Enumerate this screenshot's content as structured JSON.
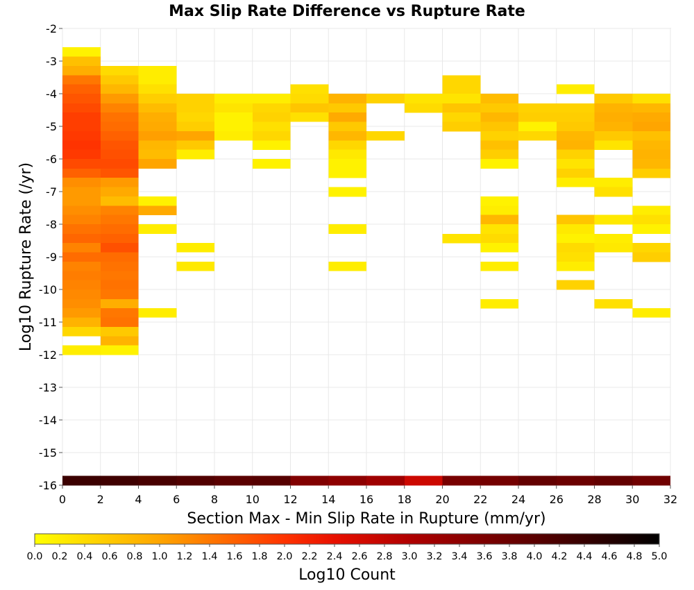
{
  "chart_data": {
    "type": "heatmap",
    "title": "Max Slip Rate Difference vs Rupture Rate",
    "xlabel": "Section Max - Min Slip Rate in Rupture (mm/yr)",
    "ylabel": "Log10 Rupture Rate (/yr)",
    "xlim": [
      0,
      32
    ],
    "ylim": [
      -16,
      -2
    ],
    "grid": true,
    "x_bin_width": 2,
    "y_bin_height": 0.286,
    "x_ticks": [
      "0",
      "2",
      "4",
      "6",
      "8",
      "10",
      "12",
      "14",
      "16",
      "18",
      "20",
      "22",
      "24",
      "26",
      "28",
      "30",
      "32"
    ],
    "y_ticks": [
      "-2",
      "-3",
      "-4",
      "-5",
      "-6",
      "-7",
      "-8",
      "-9",
      "-10",
      "-11",
      "-12",
      "-13",
      "-14",
      "-15",
      "-16"
    ],
    "colorbar": {
      "label": "Log10 Count",
      "min": 0.0,
      "max": 5.0,
      "placement": "bottom",
      "ticks": [
        "0.0",
        "0.2",
        "0.4",
        "0.6",
        "0.8",
        "1.0",
        "1.2",
        "1.4",
        "1.6",
        "1.8",
        "2.0",
        "2.2",
        "2.4",
        "2.6",
        "2.8",
        "3.0",
        "3.2",
        "3.4",
        "3.6",
        "3.8",
        "4.0",
        "4.2",
        "4.4",
        "4.6",
        "4.8",
        "5.0"
      ],
      "stops": [
        {
          "v": 0.0,
          "color": "#ffff00"
        },
        {
          "v": 1.0,
          "color": "#ffa500"
        },
        {
          "v": 2.0,
          "color": "#ff3300"
        },
        {
          "v": 2.4,
          "color": "#e81000"
        },
        {
          "v": 3.0,
          "color": "#b00000"
        },
        {
          "v": 4.0,
          "color": "#5a0000"
        },
        {
          "v": 5.0,
          "color": "#000000"
        }
      ]
    },
    "bins": [
      {
        "x": 0,
        "y": -2.86,
        "v": 0.15
      },
      {
        "x": 0,
        "y": -3.15,
        "v": 0.7
      },
      {
        "x": 0,
        "y": -3.43,
        "v": 0.9
      },
      {
        "x": 0,
        "y": -3.72,
        "v": 1.4
      },
      {
        "x": 0,
        "y": -4.0,
        "v": 1.6
      },
      {
        "x": 0,
        "y": -4.29,
        "v": 1.7
      },
      {
        "x": 0,
        "y": -4.58,
        "v": 1.8
      },
      {
        "x": 0,
        "y": -4.86,
        "v": 1.9
      },
      {
        "x": 0,
        "y": -5.15,
        "v": 1.9
      },
      {
        "x": 0,
        "y": -5.43,
        "v": 1.95
      },
      {
        "x": 0,
        "y": -5.72,
        "v": 2.0
      },
      {
        "x": 0,
        "y": -6.0,
        "v": 1.95
      },
      {
        "x": 0,
        "y": -6.29,
        "v": 1.8
      },
      {
        "x": 0,
        "y": -6.58,
        "v": 1.6
      },
      {
        "x": 0,
        "y": -6.86,
        "v": 1.2
      },
      {
        "x": 0,
        "y": -7.15,
        "v": 1.1
      },
      {
        "x": 0,
        "y": -7.43,
        "v": 1.1
      },
      {
        "x": 0,
        "y": -7.72,
        "v": 1.2
      },
      {
        "x": 0,
        "y": -8.0,
        "v": 1.3
      },
      {
        "x": 0,
        "y": -8.29,
        "v": 1.45
      },
      {
        "x": 0,
        "y": -8.58,
        "v": 1.55
      },
      {
        "x": 0,
        "y": -8.86,
        "v": 1.3
      },
      {
        "x": 0,
        "y": -9.15,
        "v": 1.5
      },
      {
        "x": 0,
        "y": -9.43,
        "v": 1.3
      },
      {
        "x": 0,
        "y": -9.72,
        "v": 1.35
      },
      {
        "x": 0,
        "y": -10.0,
        "v": 1.3
      },
      {
        "x": 0,
        "y": -10.29,
        "v": 1.25
      },
      {
        "x": 0,
        "y": -10.58,
        "v": 1.2
      },
      {
        "x": 0,
        "y": -10.86,
        "v": 1.1
      },
      {
        "x": 0,
        "y": -11.15,
        "v": 0.85
      },
      {
        "x": 0,
        "y": -11.43,
        "v": 0.45
      },
      {
        "x": 0,
        "y": -12.0,
        "v": 0.2
      },
      {
        "x": 2,
        "y": -3.43,
        "v": 0.4
      },
      {
        "x": 2,
        "y": -3.72,
        "v": 0.6
      },
      {
        "x": 2,
        "y": -4.0,
        "v": 0.8
      },
      {
        "x": 2,
        "y": -4.29,
        "v": 1.1
      },
      {
        "x": 2,
        "y": -4.58,
        "v": 1.3
      },
      {
        "x": 2,
        "y": -4.86,
        "v": 1.45
      },
      {
        "x": 2,
        "y": -5.15,
        "v": 1.5
      },
      {
        "x": 2,
        "y": -5.43,
        "v": 1.6
      },
      {
        "x": 2,
        "y": -5.72,
        "v": 1.7
      },
      {
        "x": 2,
        "y": -6.0,
        "v": 1.75
      },
      {
        "x": 2,
        "y": -6.29,
        "v": 1.8
      },
      {
        "x": 2,
        "y": -6.58,
        "v": 1.7
      },
      {
        "x": 2,
        "y": -6.86,
        "v": 1.1
      },
      {
        "x": 2,
        "y": -7.15,
        "v": 0.95
      },
      {
        "x": 2,
        "y": -7.43,
        "v": 0.75
      },
      {
        "x": 2,
        "y": -7.72,
        "v": 1.3
      },
      {
        "x": 2,
        "y": -8.0,
        "v": 1.4
      },
      {
        "x": 2,
        "y": -8.29,
        "v": 1.5
      },
      {
        "x": 2,
        "y": -8.58,
        "v": 1.6
      },
      {
        "x": 2,
        "y": -8.86,
        "v": 1.75
      },
      {
        "x": 2,
        "y": -9.15,
        "v": 1.5
      },
      {
        "x": 2,
        "y": -9.43,
        "v": 1.45
      },
      {
        "x": 2,
        "y": -9.72,
        "v": 1.4
      },
      {
        "x": 2,
        "y": -10.0,
        "v": 1.45
      },
      {
        "x": 2,
        "y": -10.29,
        "v": 1.4
      },
      {
        "x": 2,
        "y": -10.58,
        "v": 0.9
      },
      {
        "x": 2,
        "y": -10.86,
        "v": 1.4
      },
      {
        "x": 2,
        "y": -11.15,
        "v": 1.45
      },
      {
        "x": 2,
        "y": -11.43,
        "v": 0.6
      },
      {
        "x": 2,
        "y": -11.72,
        "v": 0.85
      },
      {
        "x": 2,
        "y": -12.0,
        "v": 0.15
      },
      {
        "x": 4,
        "y": -3.43,
        "v": 0.2
      },
      {
        "x": 4,
        "y": -3.72,
        "v": 0.2
      },
      {
        "x": 4,
        "y": -4.0,
        "v": 0.35
      },
      {
        "x": 4,
        "y": -4.29,
        "v": 0.55
      },
      {
        "x": 4,
        "y": -4.58,
        "v": 0.75
      },
      {
        "x": 4,
        "y": -4.86,
        "v": 0.9
      },
      {
        "x": 4,
        "y": -5.15,
        "v": 0.95
      },
      {
        "x": 4,
        "y": -5.43,
        "v": 1.05
      },
      {
        "x": 4,
        "y": -5.72,
        "v": 0.8
      },
      {
        "x": 4,
        "y": -6.0,
        "v": 0.75
      },
      {
        "x": 4,
        "y": -6.29,
        "v": 1.0
      },
      {
        "x": 4,
        "y": -7.43,
        "v": 0.15
      },
      {
        "x": 4,
        "y": -7.72,
        "v": 0.95
      },
      {
        "x": 4,
        "y": -8.29,
        "v": 0.2
      },
      {
        "x": 4,
        "y": -10.86,
        "v": 0.2
      },
      {
        "x": 6,
        "y": -4.29,
        "v": 0.5
      },
      {
        "x": 6,
        "y": -4.58,
        "v": 0.5
      },
      {
        "x": 6,
        "y": -4.86,
        "v": 0.45
      },
      {
        "x": 6,
        "y": -5.15,
        "v": 0.55
      },
      {
        "x": 6,
        "y": -5.43,
        "v": 1.0
      },
      {
        "x": 6,
        "y": -5.72,
        "v": 0.6
      },
      {
        "x": 6,
        "y": -6.0,
        "v": 0.2
      },
      {
        "x": 6,
        "y": -8.86,
        "v": 0.2
      },
      {
        "x": 6,
        "y": -9.43,
        "v": 0.25
      },
      {
        "x": 8,
        "y": -4.29,
        "v": 0.2
      },
      {
        "x": 8,
        "y": -4.58,
        "v": 0.3
      },
      {
        "x": 8,
        "y": -4.86,
        "v": 0.15
      },
      {
        "x": 8,
        "y": -5.15,
        "v": 0.15
      },
      {
        "x": 8,
        "y": -5.43,
        "v": 0.2
      },
      {
        "x": 10,
        "y": -4.29,
        "v": 0.2
      },
      {
        "x": 10,
        "y": -4.58,
        "v": 0.45
      },
      {
        "x": 10,
        "y": -4.86,
        "v": 0.5
      },
      {
        "x": 10,
        "y": -5.15,
        "v": 0.35
      },
      {
        "x": 10,
        "y": -5.43,
        "v": 0.45
      },
      {
        "x": 10,
        "y": -5.72,
        "v": 0.15
      },
      {
        "x": 10,
        "y": -6.29,
        "v": 0.15
      },
      {
        "x": 12,
        "y": -4.0,
        "v": 0.35
      },
      {
        "x": 12,
        "y": -4.29,
        "v": 0.4
      },
      {
        "x": 12,
        "y": -4.58,
        "v": 0.65
      },
      {
        "x": 12,
        "y": -4.86,
        "v": 0.35
      },
      {
        "x": 14,
        "y": -4.29,
        "v": 0.85
      },
      {
        "x": 14,
        "y": -4.58,
        "v": 0.6
      },
      {
        "x": 14,
        "y": -4.86,
        "v": 0.95
      },
      {
        "x": 14,
        "y": -5.15,
        "v": 0.6
      },
      {
        "x": 14,
        "y": -5.43,
        "v": 0.8
      },
      {
        "x": 14,
        "y": -5.72,
        "v": 0.45
      },
      {
        "x": 14,
        "y": -6.0,
        "v": 0.25
      },
      {
        "x": 14,
        "y": -6.29,
        "v": 0.15
      },
      {
        "x": 14,
        "y": -6.58,
        "v": 0.15
      },
      {
        "x": 14,
        "y": -7.15,
        "v": 0.15
      },
      {
        "x": 14,
        "y": -8.29,
        "v": 0.2
      },
      {
        "x": 14,
        "y": -9.43,
        "v": 0.2
      },
      {
        "x": 16,
        "y": -4.29,
        "v": 0.5
      },
      {
        "x": 16,
        "y": -5.43,
        "v": 0.45
      },
      {
        "x": 18,
        "y": -4.29,
        "v": 0.3
      },
      {
        "x": 18,
        "y": -4.58,
        "v": 0.4
      },
      {
        "x": 20,
        "y": -3.72,
        "v": 0.45
      },
      {
        "x": 20,
        "y": -4.0,
        "v": 0.45
      },
      {
        "x": 20,
        "y": -4.29,
        "v": 0.3
      },
      {
        "x": 20,
        "y": -4.58,
        "v": 0.65
      },
      {
        "x": 20,
        "y": -4.86,
        "v": 0.45
      },
      {
        "x": 20,
        "y": -5.15,
        "v": 0.55
      },
      {
        "x": 20,
        "y": -8.58,
        "v": 0.3
      },
      {
        "x": 22,
        "y": -4.29,
        "v": 0.75
      },
      {
        "x": 22,
        "y": -4.58,
        "v": 0.6
      },
      {
        "x": 22,
        "y": -4.86,
        "v": 0.8
      },
      {
        "x": 22,
        "y": -5.15,
        "v": 0.65
      },
      {
        "x": 22,
        "y": -5.43,
        "v": 0.5
      },
      {
        "x": 22,
        "y": -5.72,
        "v": 0.7
      },
      {
        "x": 22,
        "y": -6.0,
        "v": 0.55
      },
      {
        "x": 22,
        "y": -6.29,
        "v": 0.15
      },
      {
        "x": 22,
        "y": -7.43,
        "v": 0.15
      },
      {
        "x": 22,
        "y": -7.72,
        "v": 0.2
      },
      {
        "x": 22,
        "y": -8.0,
        "v": 0.8
      },
      {
        "x": 22,
        "y": -8.29,
        "v": 0.3
      },
      {
        "x": 22,
        "y": -8.58,
        "v": 0.4
      },
      {
        "x": 22,
        "y": -8.86,
        "v": 0.15
      },
      {
        "x": 22,
        "y": -9.43,
        "v": 0.2
      },
      {
        "x": 22,
        "y": -10.58,
        "v": 0.2
      },
      {
        "x": 24,
        "y": -4.58,
        "v": 0.5
      },
      {
        "x": 24,
        "y": -4.86,
        "v": 0.55
      },
      {
        "x": 24,
        "y": -5.15,
        "v": 0.15
      },
      {
        "x": 24,
        "y": -5.43,
        "v": 0.45
      },
      {
        "x": 26,
        "y": -4.0,
        "v": 0.2
      },
      {
        "x": 26,
        "y": -4.58,
        "v": 0.5
      },
      {
        "x": 26,
        "y": -4.86,
        "v": 0.55
      },
      {
        "x": 26,
        "y": -5.15,
        "v": 0.6
      },
      {
        "x": 26,
        "y": -5.43,
        "v": 0.8
      },
      {
        "x": 26,
        "y": -5.72,
        "v": 0.85
      },
      {
        "x": 26,
        "y": -6.0,
        "v": 0.5
      },
      {
        "x": 26,
        "y": -6.29,
        "v": 0.3
      },
      {
        "x": 26,
        "y": -6.58,
        "v": 0.5
      },
      {
        "x": 26,
        "y": -6.86,
        "v": 0.2
      },
      {
        "x": 26,
        "y": -8.0,
        "v": 0.65
      },
      {
        "x": 26,
        "y": -8.29,
        "v": 0.25
      },
      {
        "x": 26,
        "y": -8.58,
        "v": 0.15
      },
      {
        "x": 26,
        "y": -8.86,
        "v": 0.4
      },
      {
        "x": 26,
        "y": -9.15,
        "v": 0.35
      },
      {
        "x": 26,
        "y": -9.43,
        "v": 0.2
      },
      {
        "x": 26,
        "y": -10.0,
        "v": 0.5
      },
      {
        "x": 28,
        "y": -4.29,
        "v": 0.6
      },
      {
        "x": 28,
        "y": -4.58,
        "v": 0.85
      },
      {
        "x": 28,
        "y": -4.86,
        "v": 0.9
      },
      {
        "x": 28,
        "y": -5.15,
        "v": 0.85
      },
      {
        "x": 28,
        "y": -5.43,
        "v": 0.6
      },
      {
        "x": 28,
        "y": -5.72,
        "v": 0.3
      },
      {
        "x": 28,
        "y": -6.86,
        "v": 0.2
      },
      {
        "x": 28,
        "y": -7.15,
        "v": 0.35
      },
      {
        "x": 28,
        "y": -8.0,
        "v": 0.25
      },
      {
        "x": 28,
        "y": -8.58,
        "v": 0.2
      },
      {
        "x": 28,
        "y": -8.86,
        "v": 0.25
      },
      {
        "x": 28,
        "y": -10.58,
        "v": 0.35
      },
      {
        "x": 30,
        "y": -4.29,
        "v": 0.35
      },
      {
        "x": 30,
        "y": -4.58,
        "v": 0.8
      },
      {
        "x": 30,
        "y": -4.86,
        "v": 0.95
      },
      {
        "x": 30,
        "y": -5.15,
        "v": 1.0
      },
      {
        "x": 30,
        "y": -5.43,
        "v": 0.7
      },
      {
        "x": 30,
        "y": -5.72,
        "v": 0.8
      },
      {
        "x": 30,
        "y": -6.0,
        "v": 0.85
      },
      {
        "x": 30,
        "y": -6.29,
        "v": 0.8
      },
      {
        "x": 30,
        "y": -6.58,
        "v": 0.55
      },
      {
        "x": 30,
        "y": -7.72,
        "v": 0.2
      },
      {
        "x": 30,
        "y": -8.0,
        "v": 0.35
      },
      {
        "x": 30,
        "y": -8.29,
        "v": 0.15
      },
      {
        "x": 30,
        "y": -8.86,
        "v": 0.45
      },
      {
        "x": 30,
        "y": -9.15,
        "v": 0.55
      },
      {
        "x": 30,
        "y": -10.86,
        "v": 0.2
      },
      {
        "x": 0,
        "y": -16.0,
        "v": 4.35
      },
      {
        "x": 2,
        "y": -16.0,
        "v": 4.3
      },
      {
        "x": 4,
        "y": -16.0,
        "v": 4.2
      },
      {
        "x": 6,
        "y": -16.0,
        "v": 4.1
      },
      {
        "x": 8,
        "y": -16.0,
        "v": 4.0
      },
      {
        "x": 10,
        "y": -16.0,
        "v": 4.05
      },
      {
        "x": 12,
        "y": -16.0,
        "v": 3.55
      },
      {
        "x": 14,
        "y": -16.0,
        "v": 3.4
      },
      {
        "x": 16,
        "y": -16.0,
        "v": 3.2
      },
      {
        "x": 18,
        "y": -16.0,
        "v": 2.7
      },
      {
        "x": 20,
        "y": -16.0,
        "v": 3.65
      },
      {
        "x": 22,
        "y": -16.0,
        "v": 3.7
      },
      {
        "x": 24,
        "y": -16.0,
        "v": 3.9
      },
      {
        "x": 26,
        "y": -16.0,
        "v": 3.8
      },
      {
        "x": 28,
        "y": -16.0,
        "v": 3.9
      },
      {
        "x": 30,
        "y": -16.0,
        "v": 3.75
      }
    ]
  }
}
